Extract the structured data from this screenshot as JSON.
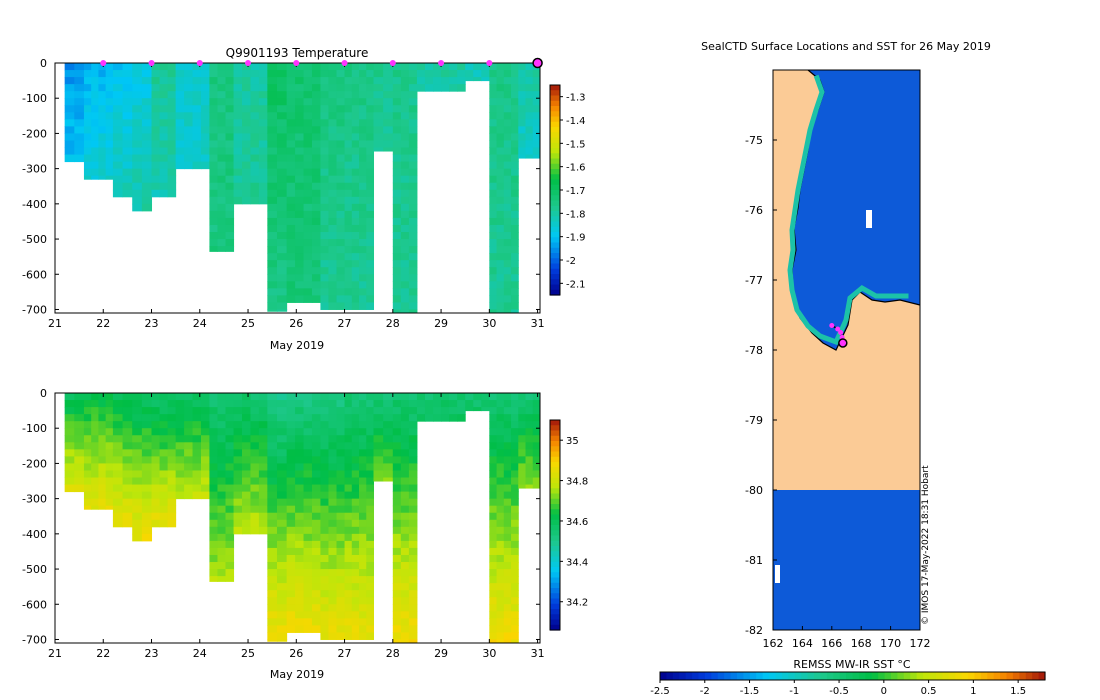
{
  "chart_data": [
    {
      "type": "heatmap",
      "panel": "temperature-section",
      "title": "Q9901193  Temperature",
      "xlabel": "May 2019",
      "ylabel": "",
      "x_tick_labels": [
        "21",
        "22",
        "23",
        "24",
        "25",
        "26",
        "27",
        "28",
        "29",
        "30",
        "31"
      ],
      "y_tick_labels": [
        "0",
        "-100",
        "-200",
        "-300",
        "-400",
        "-500",
        "-600",
        "-700"
      ],
      "xlim": [
        21,
        31.05
      ],
      "ylim": [
        -710,
        0
      ],
      "colorbar": {
        "min": -2.15,
        "max": -1.25,
        "tick_labels": [
          "-1.3",
          "-1.4",
          "-1.5",
          "-1.6",
          "-1.7",
          "-1.8",
          "-1.9",
          "-2",
          "-2.1"
        ]
      },
      "profile_markers_x": [
        22,
        23,
        24,
        25,
        26,
        27,
        28,
        29,
        30
      ],
      "last_profile_marker_x": 31,
      "profiles_approx": [
        {
          "day": 21.2,
          "max_depth": 280,
          "surface": -1.95,
          "deep": -1.9
        },
        {
          "day": 21.6,
          "max_depth": 330,
          "surface": -1.92,
          "deep": -1.85
        },
        {
          "day": 22.2,
          "max_depth": 380,
          "surface": -1.9,
          "deep": -1.82
        },
        {
          "day": 22.6,
          "max_depth": 420,
          "surface": -1.88,
          "deep": -1.8
        },
        {
          "day": 23.0,
          "max_depth": 380,
          "surface": -1.78,
          "deep": -1.82
        },
        {
          "day": 23.5,
          "max_depth": 300,
          "surface": -1.85,
          "deep": -1.84
        },
        {
          "day": 24.2,
          "max_depth": 535,
          "surface": -1.75,
          "deep": -1.75
        },
        {
          "day": 24.7,
          "max_depth": 400,
          "surface": -1.8,
          "deep": -1.78
        },
        {
          "day": 25.4,
          "max_depth": 705,
          "surface": -1.7,
          "deep": -1.76
        },
        {
          "day": 25.8,
          "max_depth": 680,
          "surface": -1.72,
          "deep": -1.74
        },
        {
          "day": 26.5,
          "max_depth": 700,
          "surface": -1.75,
          "deep": -1.78
        },
        {
          "day": 27.0,
          "max_depth": 700,
          "surface": -1.76,
          "deep": -1.78
        },
        {
          "day": 27.6,
          "max_depth": 250,
          "surface": -1.76,
          "deep": -1.8
        },
        {
          "day": 28.0,
          "max_depth": 710,
          "surface": -1.77,
          "deep": -1.78
        },
        {
          "day": 28.5,
          "max_depth": 80,
          "surface": -1.8,
          "deep": -1.8
        },
        {
          "day": 29.5,
          "max_depth": 50,
          "surface": -1.82,
          "deep": -1.82
        },
        {
          "day": 30.0,
          "max_depth": 710,
          "surface": -1.76,
          "deep": -1.78
        },
        {
          "day": 30.6,
          "max_depth": 270,
          "surface": -1.8,
          "deep": -1.85
        }
      ]
    },
    {
      "type": "heatmap",
      "panel": "salinity-section",
      "title": "",
      "xlabel": "May 2019",
      "ylabel": "",
      "x_tick_labels": [
        "21",
        "22",
        "23",
        "24",
        "25",
        "26",
        "27",
        "28",
        "29",
        "30",
        "31"
      ],
      "y_tick_labels": [
        "0",
        "-100",
        "-200",
        "-300",
        "-400",
        "-500",
        "-600",
        "-700"
      ],
      "xlim": [
        21,
        31.05
      ],
      "ylim": [
        -710,
        0
      ],
      "colorbar": {
        "min": 34.06,
        "max": 35.1,
        "tick_labels": [
          "35",
          "34.8",
          "34.6",
          "34.4",
          "34.2"
        ]
      },
      "profiles_approx": [
        {
          "day": 21.2,
          "max_depth": 280,
          "surface": 34.6,
          "deep": 34.84
        },
        {
          "day": 21.6,
          "max_depth": 330,
          "surface": 34.62,
          "deep": 34.85
        },
        {
          "day": 22.2,
          "max_depth": 380,
          "surface": 34.6,
          "deep": 34.86
        },
        {
          "day": 22.6,
          "max_depth": 420,
          "surface": 34.58,
          "deep": 34.87
        },
        {
          "day": 23.0,
          "max_depth": 380,
          "surface": 34.57,
          "deep": 34.86
        },
        {
          "day": 23.5,
          "max_depth": 300,
          "surface": 34.58,
          "deep": 34.8
        },
        {
          "day": 24.2,
          "max_depth": 535,
          "surface": 34.55,
          "deep": 34.76
        },
        {
          "day": 24.7,
          "max_depth": 400,
          "surface": 34.56,
          "deep": 34.78
        },
        {
          "day": 25.4,
          "max_depth": 705,
          "surface": 34.5,
          "deep": 34.88
        },
        {
          "day": 25.8,
          "max_depth": 680,
          "surface": 34.52,
          "deep": 34.87
        },
        {
          "day": 26.5,
          "max_depth": 700,
          "surface": 34.52,
          "deep": 34.86
        },
        {
          "day": 27.0,
          "max_depth": 700,
          "surface": 34.54,
          "deep": 34.86
        },
        {
          "day": 27.6,
          "max_depth": 250,
          "surface": 34.55,
          "deep": 34.72
        },
        {
          "day": 28.0,
          "max_depth": 710,
          "surface": 34.55,
          "deep": 34.88
        },
        {
          "day": 28.5,
          "max_depth": 80,
          "surface": 34.55,
          "deep": 34.6
        },
        {
          "day": 29.5,
          "max_depth": 50,
          "surface": 34.56,
          "deep": 34.58
        },
        {
          "day": 30.0,
          "max_depth": 710,
          "surface": 34.55,
          "deep": 34.88
        },
        {
          "day": 30.6,
          "max_depth": 270,
          "surface": 34.55,
          "deep": 34.74
        }
      ]
    },
    {
      "type": "heatmap",
      "panel": "sst-map",
      "title": "SealCTD Surface Locations and SST for 26 May 2019",
      "xlabel": "",
      "ylabel": "",
      "x_tick_labels": [
        "162",
        "164",
        "166",
        "168",
        "170",
        "172"
      ],
      "y_tick_labels": [
        "-75",
        "-76",
        "-77",
        "-78",
        "-79",
        "-80",
        "-81",
        "-82"
      ],
      "xlim": [
        162,
        172
      ],
      "ylim": [
        -82,
        -74
      ],
      "sst_colorbar": {
        "label": "REMSS MW-IR SST °C",
        "min": -2.5,
        "max": 1.8,
        "tick_labels": [
          "-2.5",
          "-2",
          "-1.5",
          "-1",
          "-0.5",
          "0",
          "0.5",
          "1",
          "1.5"
        ]
      },
      "background_sst": -1.8,
      "coastal_sst": -1.0,
      "seal_track": [
        {
          "lon": 166.0,
          "lat": -77.65
        },
        {
          "lon": 166.4,
          "lat": -77.7
        },
        {
          "lon": 166.6,
          "lat": -77.75
        },
        {
          "lon": 166.7,
          "lat": -77.82
        },
        {
          "lon": 166.75,
          "lat": -77.9
        }
      ],
      "last_position": {
        "lon": 166.75,
        "lat": -77.9
      },
      "credit": "© IMOS 17-May-2022 18:31 Hobart"
    }
  ],
  "colors": {
    "land": "#fbcb96",
    "ocean": "#0d5ad8",
    "coast_fill": "#ffffff",
    "marker": "#ff33ff",
    "track": "#000000"
  }
}
